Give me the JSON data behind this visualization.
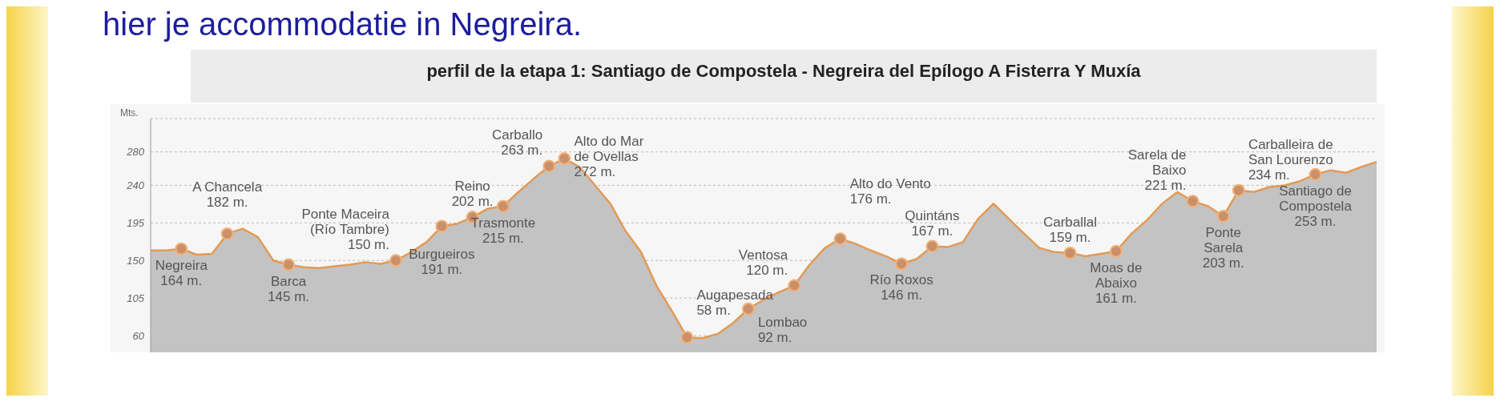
{
  "chart_data": {
    "type": "area",
    "title": "perfil de la etapa 1: Santiago de Compostela - Negreira del Epílogo A Fisterra Y Muxía",
    "ylabel": "Mts.",
    "annotations": [
      "hier je accommodatie in Negreira."
    ],
    "categories": [
      null,
      null,
      null,
      null,
      null,
      null,
      null,
      null,
      null,
      null,
      null,
      null,
      null,
      null,
      null,
      null,
      null,
      null,
      null,
      null,
      null,
      null,
      null,
      null,
      null,
      null,
      null,
      null,
      null,
      null,
      null,
      null,
      null,
      null,
      null,
      null,
      null,
      null,
      null,
      null,
      null,
      null,
      null,
      null,
      null,
      null,
      null,
      null,
      null,
      null,
      null,
      null,
      null,
      null,
      null,
      null,
      null,
      null,
      null,
      null,
      null,
      null,
      null,
      null,
      null,
      null,
      null,
      null,
      null,
      null,
      null,
      null,
      null,
      null,
      null,
      null,
      null,
      null,
      null,
      null,
      null
    ],
    "series": [
      {
        "color": "#e39a55",
        "values": [
          162,
          162,
          164,
          157,
          158,
          182,
          188,
          178,
          150,
          145,
          142,
          141,
          143,
          145,
          148,
          146,
          150,
          160,
          172,
          191,
          194,
          202,
          212,
          215,
          232,
          248,
          263,
          272,
          262,
          240,
          218,
          185,
          160,
          120,
          90,
          58,
          57,
          62,
          75,
          92,
          103,
          112,
          120,
          145,
          165,
          176,
          170,
          162,
          155,
          146,
          152,
          167,
          166,
          172,
          200,
          218,
          200,
          182,
          165,
          160,
          159,
          155,
          158,
          161,
          182,
          198,
          218,
          232,
          221,
          215,
          203,
          234,
          232,
          238,
          240,
          245,
          253,
          258,
          255,
          262,
          268
        ],
        "value_labels": [
          null,
          null,
          "Negreira 164 m.",
          null,
          null,
          "A Chancela 182 m.",
          null,
          null,
          null,
          "Barca 145 m.",
          null,
          null,
          null,
          null,
          null,
          null,
          "Ponte Maceira (Río Tambre) 150 m.",
          null,
          null,
          "Burgueiros 191 m.",
          null,
          "Reino 202 m.",
          null,
          "Trasmonte 215 m.",
          null,
          null,
          "Carballo 263 m.",
          "Alto do Mar de Ovellas 272 m.",
          null,
          null,
          null,
          null,
          null,
          null,
          null,
          "Augapesada 58 m.",
          null,
          null,
          null,
          "Lombao 92 m.",
          null,
          null,
          "Ventosa 120 m.",
          null,
          null,
          "Alto do Vento 176 m.",
          null,
          null,
          null,
          "Río Roxos 146 m.",
          null,
          "Quintáns 167 m.",
          null,
          null,
          null,
          null,
          null,
          null,
          null,
          null,
          "Carballal 159 m.",
          null,
          null,
          "Moas de Abaixo 161 m.",
          null,
          null,
          null,
          null,
          "Sarela de Baixo 221 m.",
          null,
          "Ponte Sarela 203 m.",
          "Carballeira de San Lourenzo 234 m.",
          null,
          null,
          null,
          null,
          "Santiago de Compostela 253 m.",
          null,
          null,
          null,
          null
        ]
      }
    ],
    "ylim": [
      40,
      320
    ],
    "yticks": [
      60,
      105,
      150,
      195,
      240,
      280
    ],
    "grid": "y"
  }
}
